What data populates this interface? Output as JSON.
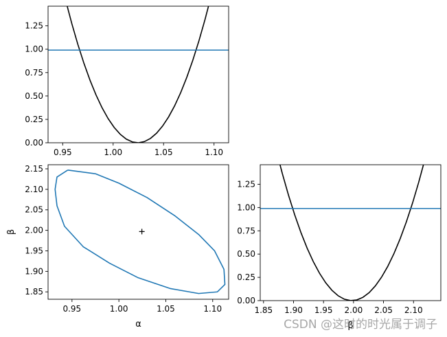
{
  "chart_data": [
    {
      "id": "top-left",
      "type": "line",
      "series": [
        {
          "kind": "parabola",
          "x_center": 1.0245,
          "x_cross_one": 0.9665,
          "x": [
            0.935,
            1.115
          ],
          "color": "#000000"
        },
        {
          "kind": "hline",
          "y": 0.99,
          "color": "#1f77b4"
        }
      ],
      "xlim": [
        0.9355,
        1.1145
      ],
      "ylim": [
        0.0,
        1.46
      ],
      "xticks": [
        "0.95",
        "1.00",
        "1.05",
        "1.10"
      ],
      "xtick_values": [
        0.95,
        1.0,
        1.05,
        1.1
      ],
      "yticks": [
        "0.00",
        "0.25",
        "0.50",
        "0.75",
        "1.00",
        "1.25"
      ],
      "ytick_values": [
        0.0,
        0.25,
        0.5,
        0.75,
        1.0,
        1.25
      ],
      "xlabel": "",
      "ylabel": ""
    },
    {
      "id": "bottom-left",
      "type": "scatter",
      "series": [
        {
          "kind": "ellipse",
          "center": [
            1.0245,
            1.997
          ],
          "points": [
            [
              0.9455,
              2.147
            ],
            [
              0.975,
              2.138
            ],
            [
              1.0,
              2.115
            ],
            [
              1.03,
              2.08
            ],
            [
              1.06,
              2.035
            ],
            [
              1.085,
              1.99
            ],
            [
              1.102,
              1.95
            ],
            [
              1.112,
              1.905
            ],
            [
              1.113,
              1.868
            ],
            [
              1.105,
              1.85
            ],
            [
              1.085,
              1.846
            ],
            [
              1.055,
              1.858
            ],
            [
              1.02,
              1.885
            ],
            [
              0.99,
              1.92
            ],
            [
              0.962,
              1.96
            ],
            [
              0.942,
              2.01
            ],
            [
              0.934,
              2.06
            ],
            [
              0.932,
              2.1
            ],
            [
              0.934,
              2.13
            ],
            [
              0.9455,
              2.147
            ]
          ],
          "color": "#1f77b4"
        },
        {
          "kind": "marker",
          "x": 1.0245,
          "y": 1.997,
          "marker": "+",
          "color": "#000000"
        }
      ],
      "xlim": [
        0.9245,
        1.117
      ],
      "ylim": [
        1.832,
        2.16
      ],
      "xticks": [
        "0.95",
        "1.00",
        "1.05",
        "1.10"
      ],
      "xtick_values": [
        0.95,
        1.0,
        1.05,
        1.1
      ],
      "yticks": [
        "1.85",
        "1.90",
        "1.95",
        "2.00",
        "2.05",
        "2.10",
        "2.15"
      ],
      "ytick_values": [
        1.85,
        1.9,
        1.95,
        2.0,
        2.05,
        2.1,
        2.15
      ],
      "xlabel": "α",
      "ylabel": "β"
    },
    {
      "id": "bottom-right",
      "type": "line",
      "series": [
        {
          "kind": "parabola",
          "x_center": 1.997,
          "x_cross_one": 1.898,
          "x": [
            1.84,
            2.15
          ],
          "color": "#000000"
        },
        {
          "kind": "hline",
          "y": 0.99,
          "color": "#1f77b4"
        }
      ],
      "xlim": [
        1.8445,
        2.1455
      ],
      "ylim": [
        0.0,
        1.46
      ],
      "xticks": [
        "1.85",
        "1.90",
        "1.95",
        "2.00",
        "2.05",
        "2.10"
      ],
      "xtick_values": [
        1.85,
        1.9,
        1.95,
        2.0,
        2.05,
        2.1
      ],
      "yticks": [
        "0.00",
        "0.25",
        "0.50",
        "0.75",
        "1.00",
        "1.25"
      ],
      "ytick_values": [
        0.0,
        0.25,
        0.5,
        0.75,
        1.0,
        1.25
      ],
      "xlabel": "β",
      "ylabel": ""
    }
  ],
  "watermark": "CSDN @这时的时光属于调子"
}
